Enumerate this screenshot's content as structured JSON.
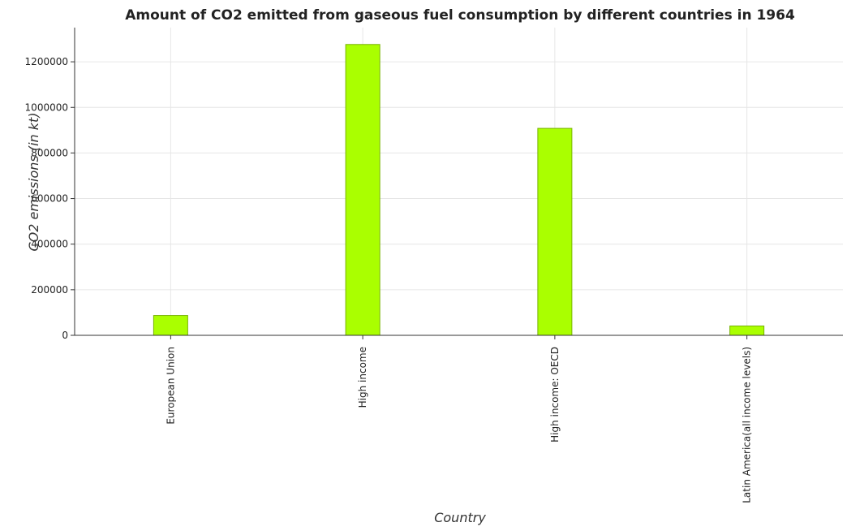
{
  "chart_data": {
    "type": "bar",
    "title": "Amount of CO2 emitted from gaseous fuel consumption by different countries in 1964",
    "xlabel": "Country",
    "ylabel": "CO2 emissions (in kt)",
    "categories": [
      "European Union",
      "High income",
      "High income: OECD",
      "Latin America(all income levels)"
    ],
    "values": [
      87000,
      1276000,
      908000,
      41000
    ],
    "ylim": [
      0,
      1350000
    ],
    "yticks": [
      0,
      200000,
      400000,
      600000,
      800000,
      1000000,
      1200000
    ],
    "ytick_labels": [
      "0",
      "200000",
      "400000",
      "600000",
      "800000",
      "1000000",
      "1200000"
    ],
    "grid": true,
    "bar_color": "#aaff00",
    "bar_edge_color": "#77b300"
  }
}
